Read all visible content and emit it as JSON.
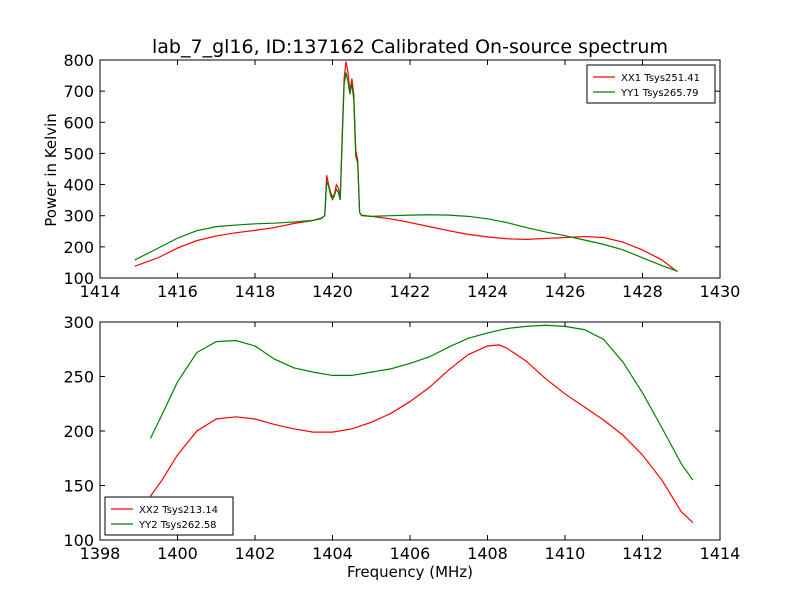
{
  "chart_data": [
    {
      "type": "line",
      "title": "lab_7_gl16, ID:137162 Calibrated On-source spectrum",
      "xlabel": "",
      "ylabel": "Power in Kelvin",
      "xlim": [
        1414,
        1430
      ],
      "ylim": [
        100,
        800
      ],
      "xticks": [
        1414,
        1416,
        1418,
        1420,
        1422,
        1424,
        1426,
        1428,
        1430
      ],
      "yticks": [
        100,
        200,
        300,
        400,
        500,
        600,
        700,
        800
      ],
      "legend_position": "top-right",
      "series": [
        {
          "name": "XX1 Tsys251.41",
          "color": "#ff0000",
          "points": [
            [
              1414.9,
              138
            ],
            [
              1415.5,
              165
            ],
            [
              1416.0,
              196
            ],
            [
              1416.5,
              220
            ],
            [
              1417.0,
              235
            ],
            [
              1417.5,
              245
            ],
            [
              1418.0,
              253
            ],
            [
              1418.5,
              262
            ],
            [
              1419.0,
              275
            ],
            [
              1419.5,
              285
            ],
            [
              1419.7,
              292
            ],
            [
              1419.8,
              300
            ],
            [
              1419.85,
              430
            ],
            [
              1419.9,
              400
            ],
            [
              1419.95,
              375
            ],
            [
              1420.0,
              360
            ],
            [
              1420.05,
              370
            ],
            [
              1420.1,
              400
            ],
            [
              1420.15,
              390
            ],
            [
              1420.2,
              360
            ],
            [
              1420.25,
              560
            ],
            [
              1420.3,
              740
            ],
            [
              1420.35,
              795
            ],
            [
              1420.4,
              760
            ],
            [
              1420.45,
              700
            ],
            [
              1420.5,
              740
            ],
            [
              1420.55,
              690
            ],
            [
              1420.6,
              510
            ],
            [
              1420.65,
              480
            ],
            [
              1420.7,
              310
            ],
            [
              1420.75,
              300
            ],
            [
              1421.0,
              298
            ],
            [
              1421.5,
              290
            ],
            [
              1422.0,
              278
            ],
            [
              1422.5,
              265
            ],
            [
              1423.0,
              252
            ],
            [
              1423.5,
              240
            ],
            [
              1424.0,
              232
            ],
            [
              1424.5,
              226
            ],
            [
              1425.0,
              224
            ],
            [
              1425.5,
              227
            ],
            [
              1426.0,
              230
            ],
            [
              1426.5,
              233
            ],
            [
              1427.0,
              230
            ],
            [
              1427.5,
              215
            ],
            [
              1428.0,
              190
            ],
            [
              1428.5,
              158
            ],
            [
              1428.9,
              120
            ]
          ]
        },
        {
          "name": "YY1 Tsys265.79",
          "color": "#008000",
          "points": [
            [
              1414.9,
              158
            ],
            [
              1415.5,
              196
            ],
            [
              1416.0,
              228
            ],
            [
              1416.5,
              252
            ],
            [
              1417.0,
              265
            ],
            [
              1417.5,
              270
            ],
            [
              1418.0,
              274
            ],
            [
              1418.5,
              276
            ],
            [
              1419.0,
              280
            ],
            [
              1419.5,
              285
            ],
            [
              1419.7,
              290
            ],
            [
              1419.8,
              300
            ],
            [
              1419.85,
              410
            ],
            [
              1419.9,
              395
            ],
            [
              1419.95,
              365
            ],
            [
              1420.0,
              352
            ],
            [
              1420.05,
              365
            ],
            [
              1420.1,
              385
            ],
            [
              1420.15,
              375
            ],
            [
              1420.2,
              350
            ],
            [
              1420.25,
              540
            ],
            [
              1420.3,
              720
            ],
            [
              1420.35,
              760
            ],
            [
              1420.4,
              730
            ],
            [
              1420.45,
              690
            ],
            [
              1420.5,
              725
            ],
            [
              1420.55,
              670
            ],
            [
              1420.6,
              490
            ],
            [
              1420.65,
              470
            ],
            [
              1420.7,
              310
            ],
            [
              1420.75,
              302
            ],
            [
              1421.0,
              298
            ],
            [
              1421.5,
              300
            ],
            [
              1422.0,
              302
            ],
            [
              1422.5,
              303
            ],
            [
              1423.0,
              302
            ],
            [
              1423.5,
              298
            ],
            [
              1424.0,
              290
            ],
            [
              1424.5,
              278
            ],
            [
              1425.0,
              262
            ],
            [
              1425.5,
              248
            ],
            [
              1426.0,
              236
            ],
            [
              1426.5,
              222
            ],
            [
              1427.0,
              208
            ],
            [
              1427.5,
              190
            ],
            [
              1428.0,
              165
            ],
            [
              1428.5,
              140
            ],
            [
              1428.9,
              122
            ]
          ]
        }
      ]
    },
    {
      "type": "line",
      "title": "",
      "xlabel": "Frequency (MHz)",
      "ylabel": "",
      "xlim": [
        1398,
        1414
      ],
      "ylim": [
        100,
        300
      ],
      "xticks": [
        1398,
        1400,
        1402,
        1404,
        1406,
        1408,
        1410,
        1412,
        1414
      ],
      "yticks": [
        100,
        150,
        200,
        250,
        300
      ],
      "legend_position": "bottom-left",
      "series": [
        {
          "name": "XX2 Tsys213.14",
          "color": "#ff0000",
          "points": [
            [
              1399.3,
              140
            ],
            [
              1399.6,
              155
            ],
            [
              1400.0,
              178
            ],
            [
              1400.5,
              200
            ],
            [
              1401.0,
              211
            ],
            [
              1401.5,
              213
            ],
            [
              1402.0,
              211
            ],
            [
              1402.5,
              206
            ],
            [
              1403.0,
              202
            ],
            [
              1403.5,
              199
            ],
            [
              1404.0,
              199
            ],
            [
              1404.5,
              202
            ],
            [
              1405.0,
              208
            ],
            [
              1405.5,
              216
            ],
            [
              1406.0,
              227
            ],
            [
              1406.5,
              240
            ],
            [
              1407.0,
              256
            ],
            [
              1407.5,
              270
            ],
            [
              1408.0,
              278
            ],
            [
              1408.3,
              279
            ],
            [
              1408.5,
              276
            ],
            [
              1409.0,
              264
            ],
            [
              1409.5,
              248
            ],
            [
              1410.0,
              234
            ],
            [
              1410.5,
              222
            ],
            [
              1411.0,
              210
            ],
            [
              1411.5,
              196
            ],
            [
              1412.0,
              178
            ],
            [
              1412.5,
              155
            ],
            [
              1413.0,
              126
            ],
            [
              1413.3,
              116
            ]
          ]
        },
        {
          "name": "YY2 Tsys262.58",
          "color": "#008000",
          "points": [
            [
              1399.3,
              193
            ],
            [
              1399.6,
              215
            ],
            [
              1400.0,
              245
            ],
            [
              1400.5,
              272
            ],
            [
              1401.0,
              282
            ],
            [
              1401.5,
              283
            ],
            [
              1402.0,
              278
            ],
            [
              1402.5,
              266
            ],
            [
              1403.0,
              258
            ],
            [
              1403.5,
              254
            ],
            [
              1404.0,
              251
            ],
            [
              1404.5,
              251
            ],
            [
              1405.0,
              254
            ],
            [
              1405.5,
              257
            ],
            [
              1406.0,
              262
            ],
            [
              1406.5,
              268
            ],
            [
              1407.0,
              277
            ],
            [
              1407.5,
              285
            ],
            [
              1408.0,
              290
            ],
            [
              1408.5,
              294
            ],
            [
              1409.0,
              296
            ],
            [
              1409.5,
              297
            ],
            [
              1410.0,
              296
            ],
            [
              1410.5,
              293
            ],
            [
              1411.0,
              284
            ],
            [
              1411.5,
              263
            ],
            [
              1412.0,
              235
            ],
            [
              1412.5,
              203
            ],
            [
              1413.0,
              170
            ],
            [
              1413.3,
              155
            ]
          ]
        }
      ]
    }
  ]
}
